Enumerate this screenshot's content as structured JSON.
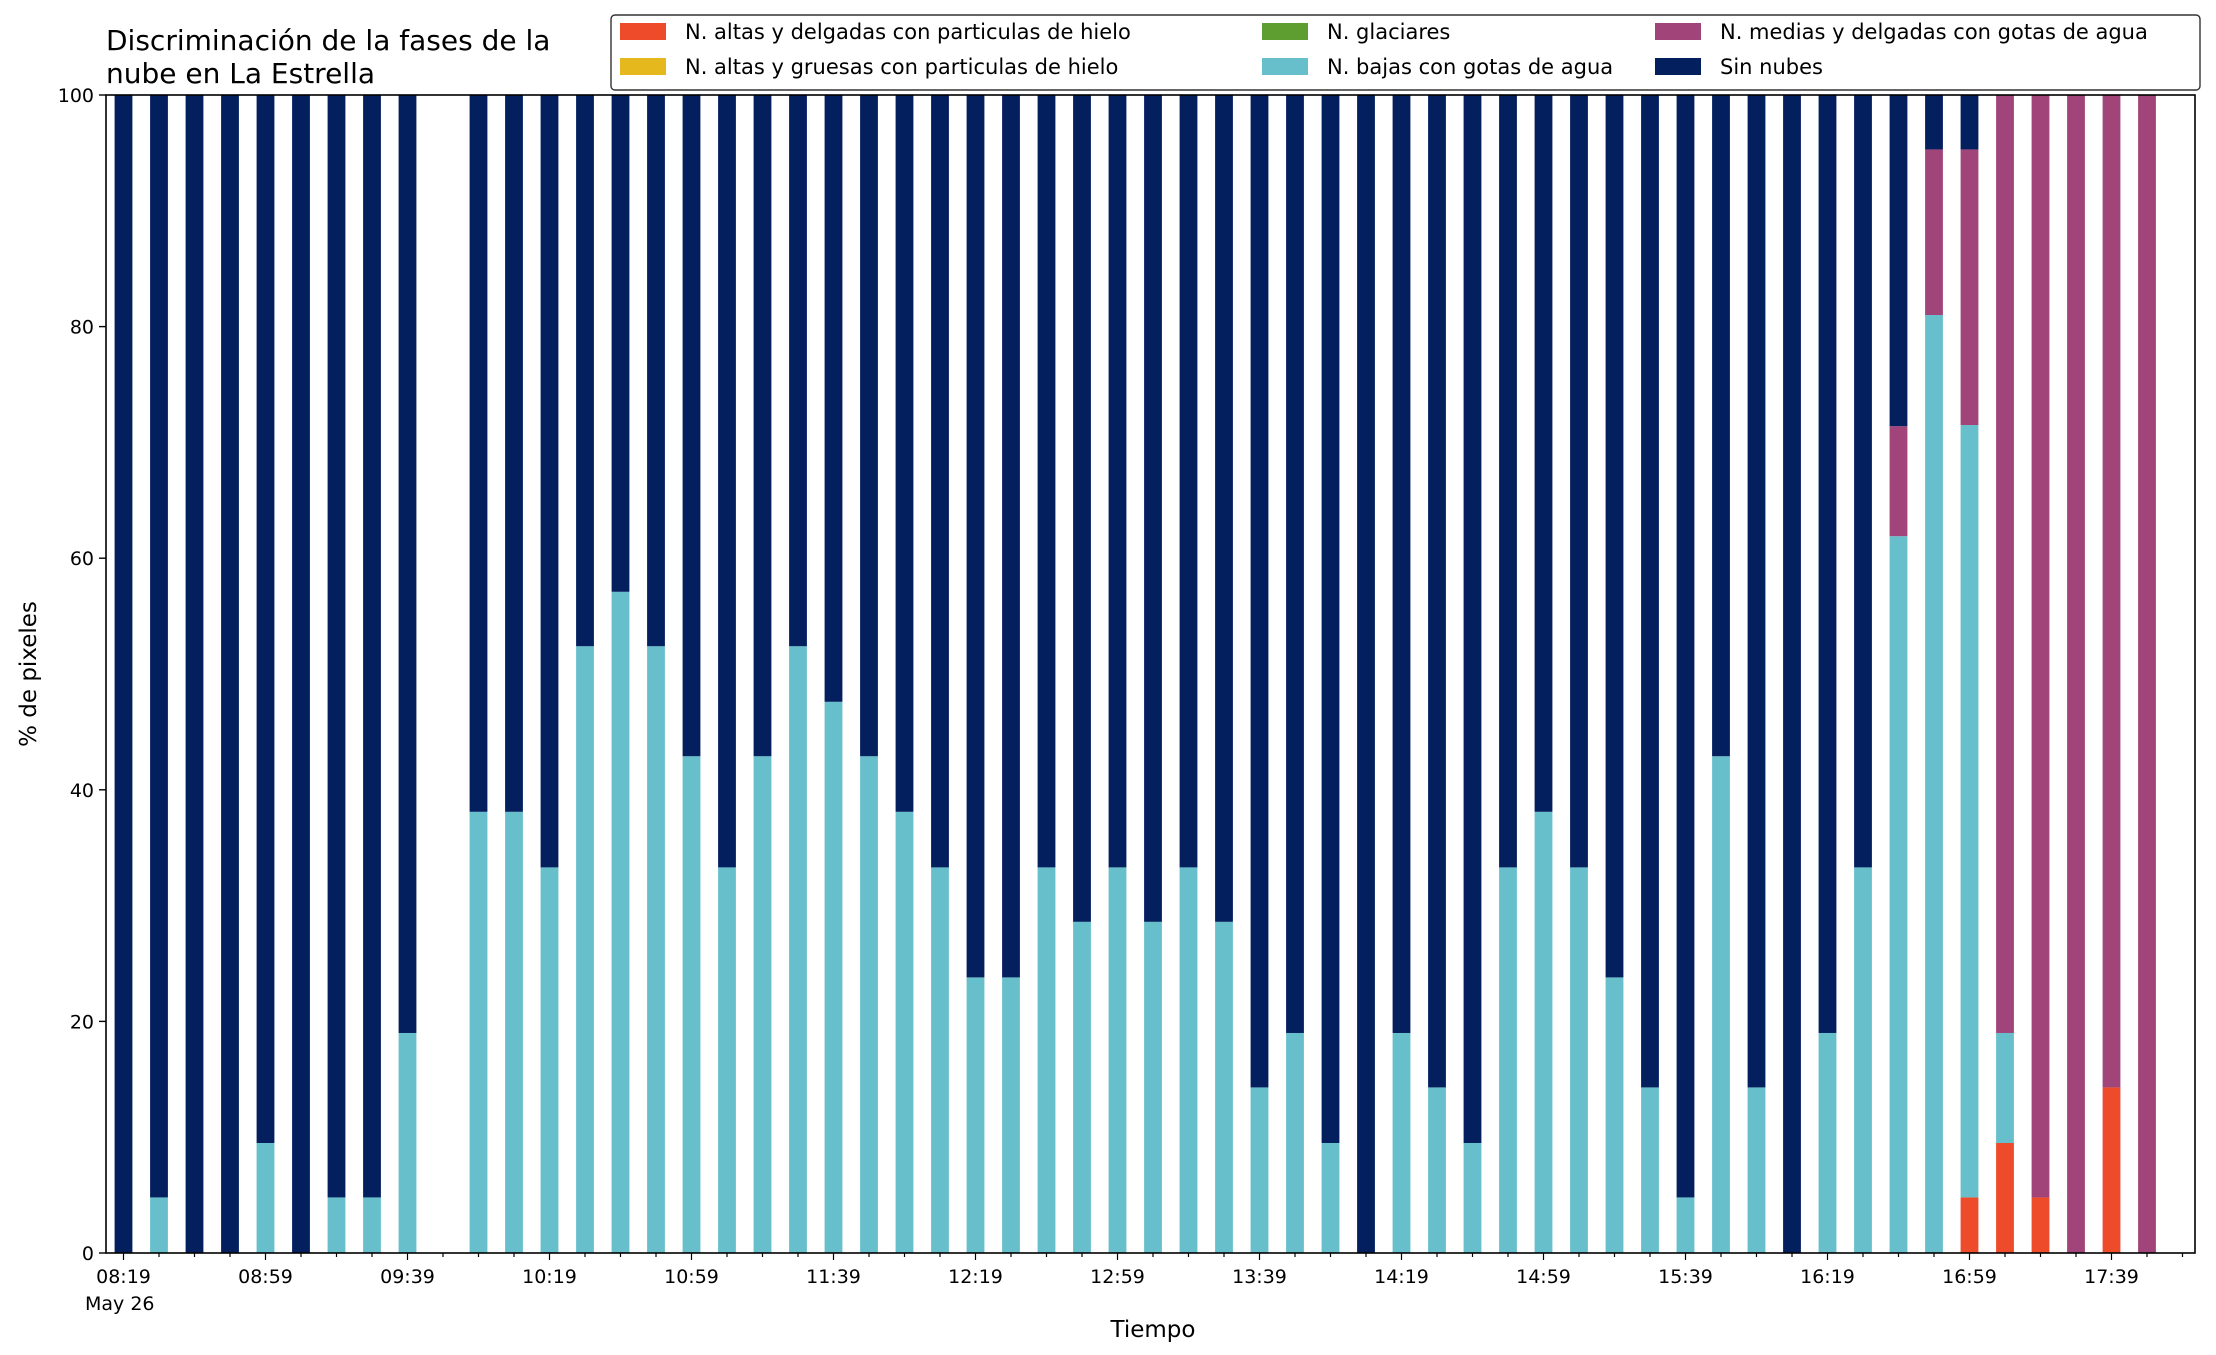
{
  "chart_data": {
    "type": "bar",
    "stacked": true,
    "title_lines": [
      "Discriminación de la fases de la",
      "nube en La Estrella"
    ],
    "xlabel": "Tiempo",
    "ylabel": "% de pixeles",
    "ylim": [
      0,
      100
    ],
    "yticks": [
      "0",
      "20",
      "40",
      "60",
      "80",
      "100"
    ],
    "xtick_labels": [
      "08:19",
      "08:59",
      "09:39",
      "10:19",
      "10:59",
      "11:39",
      "12:19",
      "12:59",
      "13:39",
      "14:19",
      "14:59",
      "15:39",
      "16:19",
      "16:59",
      "17:39"
    ],
    "x_date_label": "May 26",
    "time_step_minutes": 10,
    "grid": false,
    "legend_position": "top-right",
    "categories": [
      "08:19",
      "08:29",
      "08:39",
      "08:49",
      "08:59",
      "09:09",
      "09:19",
      "09:29",
      "09:39",
      "09:49",
      "09:59",
      "10:09",
      "10:19",
      "10:29",
      "10:39",
      "10:49",
      "10:59",
      "11:09",
      "11:19",
      "11:29",
      "11:39",
      "11:49",
      "11:59",
      "12:09",
      "12:19",
      "12:29",
      "12:39",
      "12:49",
      "12:59",
      "13:09",
      "13:19",
      "13:29",
      "13:39",
      "13:49",
      "13:59",
      "14:09",
      "14:19",
      "14:29",
      "14:39",
      "14:49",
      "14:59",
      "15:09",
      "15:19",
      "15:29",
      "15:39",
      "15:49",
      "15:59",
      "16:09",
      "16:19",
      "16:29",
      "16:39",
      "16:49",
      "16:59",
      "17:09",
      "17:19",
      "17:29",
      "17:39",
      "17:49"
    ],
    "legend_order": [
      0,
      3,
      4,
      1,
      2,
      5
    ],
    "series": [
      {
        "name": "N. altas y delgadas con particulas de hielo",
        "color": "#EE4B2B",
        "values": [
          0,
          0,
          0,
          0,
          0,
          0,
          0,
          0,
          0,
          null,
          0,
          0,
          0,
          0,
          0,
          0,
          0,
          0,
          0,
          0,
          0,
          0,
          0,
          0,
          0,
          0,
          0,
          0,
          0,
          0,
          0,
          0,
          0,
          0,
          0,
          0,
          0,
          0,
          0,
          0,
          0,
          0,
          0,
          0,
          0,
          0,
          0,
          0,
          0,
          0,
          0,
          0,
          4.8,
          9.5,
          4.8,
          0,
          14.3,
          0
        ]
      },
      {
        "name": "N. bajas con gotas de agua",
        "color": "#67BFCB",
        "values": [
          0,
          4.8,
          0,
          0,
          9.5,
          0,
          4.8,
          4.8,
          19,
          null,
          38.1,
          38.1,
          33.3,
          52.4,
          57.1,
          52.4,
          42.9,
          33.3,
          42.9,
          52.4,
          47.6,
          42.9,
          38.1,
          33.3,
          23.8,
          23.8,
          33.3,
          28.6,
          33.3,
          28.6,
          33.3,
          28.6,
          14.3,
          19,
          9.5,
          0,
          19,
          14.3,
          9.5,
          33.3,
          38.1,
          33.3,
          23.8,
          14.3,
          4.8,
          42.9,
          14.3,
          0,
          19,
          33.3,
          61.9,
          81,
          66.7,
          9.5,
          0,
          0,
          0,
          0
        ]
      },
      {
        "name": "N. medias y delgadas con gotas de agua",
        "color": "#A0447A",
        "values": [
          0,
          0,
          0,
          0,
          0,
          0,
          0,
          0,
          0,
          null,
          0,
          0,
          0,
          0,
          0,
          0,
          0,
          0,
          0,
          0,
          0,
          0,
          0,
          0,
          0,
          0,
          0,
          0,
          0,
          0,
          0,
          0,
          0,
          0,
          0,
          0,
          0,
          0,
          0,
          0,
          0,
          0,
          0,
          0,
          0,
          0,
          0,
          0,
          0,
          0,
          9.5,
          14.3,
          23.8,
          81,
          95.2,
          100,
          85.7,
          100
        ]
      },
      {
        "name": "N. altas y gruesas con particulas de hielo",
        "color": "#E5B91E",
        "values": [
          0,
          0,
          0,
          0,
          0,
          0,
          0,
          0,
          0,
          null,
          0,
          0,
          0,
          0,
          0,
          0,
          0,
          0,
          0,
          0,
          0,
          0,
          0,
          0,
          0,
          0,
          0,
          0,
          0,
          0,
          0,
          0,
          0,
          0,
          0,
          0,
          0,
          0,
          0,
          0,
          0,
          0,
          0,
          0,
          0,
          0,
          0,
          0,
          0,
          0,
          0,
          0,
          0,
          0,
          0,
          0,
          0,
          0
        ]
      },
      {
        "name": "N. glaciares",
        "color": "#5E9E30",
        "values": [
          0,
          0,
          0,
          0,
          0,
          0,
          0,
          0,
          0,
          null,
          0,
          0,
          0,
          0,
          0,
          0,
          0,
          0,
          0,
          0,
          0,
          0,
          0,
          0,
          0,
          0,
          0,
          0,
          0,
          0,
          0,
          0,
          0,
          0,
          0,
          0,
          0,
          0,
          0,
          0,
          0,
          0,
          0,
          0,
          0,
          0,
          0,
          0,
          0,
          0,
          0,
          0,
          0,
          0,
          0,
          0,
          0,
          0
        ]
      },
      {
        "name": "Sin nubes",
        "color": "#031F5E",
        "values": [
          100,
          95.2,
          100,
          100,
          90.5,
          100,
          95.2,
          95.2,
          81,
          null,
          61.9,
          61.9,
          66.7,
          47.6,
          42.9,
          47.6,
          57.1,
          66.7,
          57.1,
          47.6,
          52.4,
          57.1,
          61.9,
          66.7,
          76.2,
          76.2,
          66.7,
          71.4,
          66.7,
          71.4,
          66.7,
          71.4,
          85.7,
          81,
          90.5,
          100,
          81,
          85.7,
          90.5,
          66.7,
          61.9,
          66.7,
          76.2,
          85.7,
          95.2,
          57.1,
          85.7,
          100,
          81,
          66.7,
          28.6,
          4.7,
          4.7,
          0,
          0,
          0,
          0,
          0
        ]
      }
    ]
  }
}
